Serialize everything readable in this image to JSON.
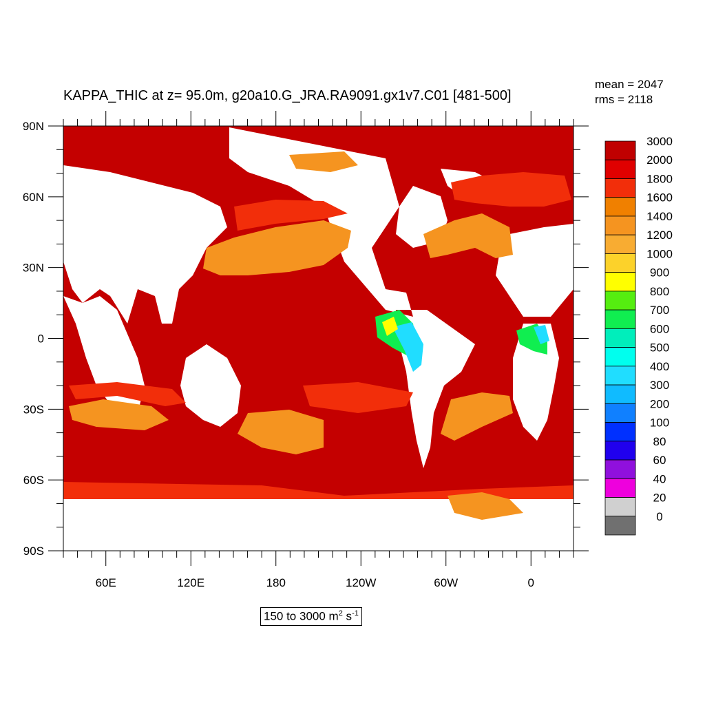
{
  "title": "KAPPA_THIC at z=  95.0m, g20a10.G_JRA.RA9091.gx1v7.C01 [481-500]",
  "stats": {
    "mean": "mean = 2047",
    "rms": "rms = 2118"
  },
  "units_box": {
    "text": "150 to 3000 m",
    "exp1": "2",
    "mid": " s",
    "exp2": "-1"
  },
  "map": {
    "projection": "cylindrical equidistant",
    "lon_range": [
      30,
      390
    ],
    "lat_range": [
      -90,
      90
    ],
    "ocean_field_mostly": "2000-3000",
    "land_color": "#ffffff"
  },
  "axes": {
    "y_ticks": [
      {
        "lat": 90,
        "label": "90N"
      },
      {
        "lat": 60,
        "label": "60N"
      },
      {
        "lat": 30,
        "label": "30N"
      },
      {
        "lat": 0,
        "label": "0"
      },
      {
        "lat": -30,
        "label": "30S"
      },
      {
        "lat": -60,
        "label": "60S"
      },
      {
        "lat": -90,
        "label": "90S"
      }
    ],
    "x_ticks": [
      {
        "lon": 60,
        "label": "60E"
      },
      {
        "lon": 120,
        "label": "120E"
      },
      {
        "lon": 180,
        "label": "180"
      },
      {
        "lon": 240,
        "label": "120W"
      },
      {
        "lon": 300,
        "label": "60W"
      },
      {
        "lon": 360,
        "label": "0"
      }
    ]
  },
  "colorbar": {
    "levels": [
      "3000",
      "2000",
      "1800",
      "1600",
      "1400",
      "1200",
      "1000",
      "900",
      "800",
      "700",
      "600",
      "500",
      "400",
      "300",
      "200",
      "100",
      "80",
      "60",
      "40",
      "20",
      "0"
    ],
    "colors": [
      "#c00000",
      "#e00000",
      "#f22e0a",
      "#f08000",
      "#f59420",
      "#f8ac32",
      "#fcd22a",
      "#ffff00",
      "#55ee10",
      "#10ee50",
      "#00eebb",
      "#00ffee",
      "#20ddff",
      "#10bbff",
      "#1080ff",
      "#0030ff",
      "#2000ee",
      "#9010dd",
      "#ee00dd",
      "#d0d0d0",
      "#707070"
    ]
  }
}
